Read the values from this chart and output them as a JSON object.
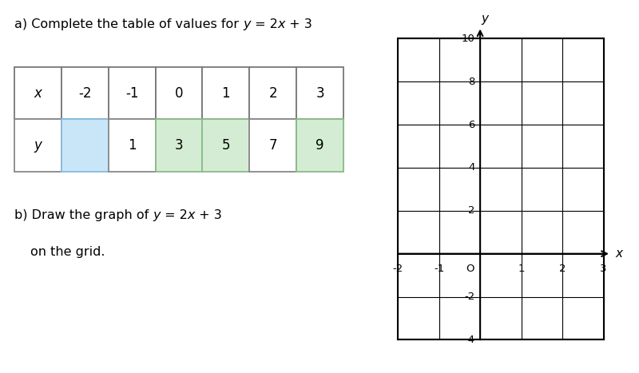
{
  "x_values": [
    -2,
    -1,
    0,
    1,
    2,
    3
  ],
  "y_values": [
    "",
    1,
    3,
    5,
    7,
    9
  ],
  "y_bg_colors": [
    "#c8e6f8",
    "#ffffff",
    "#d4ecd4",
    "#d4ecd4",
    "#ffffff",
    "#d4ecd4"
  ],
  "y_border_colors": [
    "#88bbdd",
    "#888888",
    "#88bb88",
    "#88bb88",
    "#888888",
    "#88bb88"
  ],
  "grid_xlim": [
    -2,
    3
  ],
  "grid_ylim": [
    -4,
    10
  ],
  "grid_xticks": [
    -2,
    -1,
    0,
    1,
    2,
    3
  ],
  "grid_yticks": [
    -4,
    -2,
    0,
    2,
    4,
    6,
    8,
    10
  ],
  "background_color": "#ffffff"
}
